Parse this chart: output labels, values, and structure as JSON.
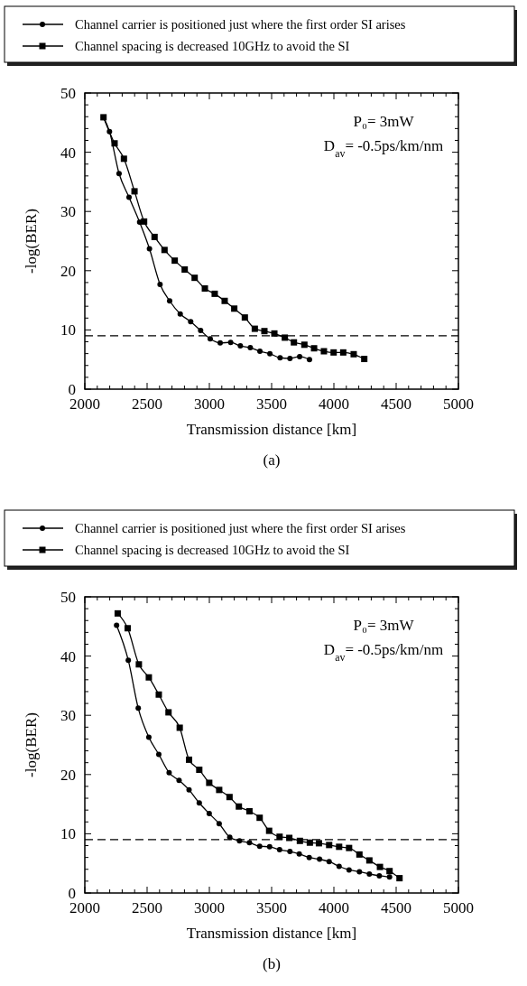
{
  "chart_data": [
    {
      "type": "line",
      "xlabel": "Transmission distance [km]",
      "ylabel": "-log(BER)",
      "legend": "top",
      "annotations": [
        "P₀= 3mW",
        "D$_{av}$= -0.5ps/km/nm",
        "(a)"
      ],
      "xlim": [
        2000,
        5000
      ],
      "ylim": [
        0,
        50
      ],
      "xticks": [
        2000,
        {
          "value": 2100,
          "label": null
        },
        {
          "value": 2200,
          "label": null
        },
        {
          "value": 2300,
          "label": null
        },
        {
          "value": 2400,
          "label": null
        },
        2500,
        {
          "value": 2600,
          "label": null
        },
        {
          "value": 2700,
          "label": null
        },
        {
          "value": 2800,
          "label": null
        },
        {
          "value": 2900,
          "label": null
        },
        3000,
        {
          "value": 3100,
          "label": null
        },
        {
          "value": 3200,
          "label": null
        },
        {
          "value": 3300,
          "label": null
        },
        {
          "value": 3400,
          "label": null
        },
        3500,
        {
          "value": 3600,
          "label": null
        },
        {
          "value": 3700,
          "label": null
        },
        {
          "value": 3800,
          "label": null
        },
        {
          "value": 3900,
          "label": null
        },
        4000,
        {
          "value": 4100,
          "label": null
        },
        {
          "value": 4200,
          "label": null
        },
        {
          "value": 4300,
          "label": null
        },
        {
          "value": 4400,
          "label": null
        },
        4500,
        {
          "value": 4600,
          "label": null
        },
        {
          "value": 4700,
          "label": null
        },
        {
          "value": 4800,
          "label": null
        },
        {
          "value": 4900,
          "label": null
        },
        5000
      ],
      "yticks": [
        0,
        {
          "value": 2,
          "label": null
        },
        {
          "value": 4,
          "label": null
        },
        {
          "value": 6,
          "label": null
        },
        {
          "value": 8,
          "label": null
        },
        10,
        {
          "value": 12,
          "label": null
        },
        {
          "value": 14,
          "label": null
        },
        {
          "value": 16,
          "label": null
        },
        {
          "value": 18,
          "label": null
        },
        20,
        {
          "value": 22,
          "label": null
        },
        {
          "value": 24,
          "label": null
        },
        {
          "value": 26,
          "label": null
        },
        {
          "value": 28,
          "label": null
        },
        30,
        {
          "value": 32,
          "label": null
        },
        {
          "value": 34,
          "label": null
        },
        {
          "value": 36,
          "label": null
        },
        {
          "value": 38,
          "label": null
        },
        40,
        {
          "value": 42,
          "label": null
        },
        {
          "value": 44,
          "label": null
        },
        {
          "value": 46,
          "label": null
        },
        {
          "value": 48,
          "label": null
        },
        50
      ],
      "ref_lines": [
        {
          "axis": "y",
          "value": 9,
          "line_style": "dashed",
          "color": "#000000"
        }
      ],
      "series": [
        {
          "name": "Channel carrier is positioned just where the first order SI arises",
          "color": "#000000",
          "marker": "circle",
          "x": [
            2150,
            2198,
            2275,
            2355,
            2440,
            2519,
            2604,
            2681,
            2766,
            2850,
            2930,
            3007,
            3087,
            3171,
            3249,
            3329,
            3406,
            3486,
            3568,
            3647,
            3725,
            3804
          ],
          "values": [
            45.9,
            43.5,
            36.4,
            32.4,
            28.2,
            23.7,
            17.7,
            14.9,
            12.7,
            11.4,
            9.9,
            8.5,
            7.8,
            7.9,
            7.3,
            7.0,
            6.4,
            6.0,
            5.3,
            5.2,
            5.5,
            5.0
          ]
        },
        {
          "name": "Channel spacing is decreased 10GHz to avoid the SI",
          "color": "#000000",
          "marker": "square",
          "x": [
            2150,
            2239,
            2314,
            2399,
            2476,
            2560,
            2640,
            2722,
            2802,
            2882,
            2964,
            3043,
            3123,
            3200,
            3285,
            3365,
            3442,
            3522,
            3606,
            3679,
            3763,
            3841,
            3920,
            3998,
            4075,
            4159,
            4244
          ],
          "values": [
            45.9,
            41.5,
            38.9,
            33.4,
            28.3,
            25.7,
            23.5,
            21.7,
            20.2,
            18.8,
            17.0,
            16.1,
            14.9,
            13.6,
            12.1,
            10.2,
            9.8,
            9.4,
            8.7,
            7.9,
            7.5,
            6.9,
            6.4,
            6.2,
            6.2,
            5.9,
            5.1
          ]
        }
      ]
    },
    {
      "type": "line",
      "xlabel": "Transmission distance [km]",
      "ylabel": "-log(BER)",
      "legend": "top",
      "annotations": [
        "P₀= 3mW",
        "D$_{av}$= -0.5ps/km/nm",
        "(b)"
      ],
      "xlim": [
        2000,
        5000
      ],
      "ylim": [
        0,
        50
      ],
      "xticks": [
        2000,
        {
          "value": 2100,
          "label": null
        },
        {
          "value": 2200,
          "label": null
        },
        {
          "value": 2300,
          "label": null
        },
        {
          "value": 2400,
          "label": null
        },
        2500,
        {
          "value": 2600,
          "label": null
        },
        {
          "value": 2700,
          "label": null
        },
        {
          "value": 2800,
          "label": null
        },
        {
          "value": 2900,
          "label": null
        },
        3000,
        {
          "value": 3100,
          "label": null
        },
        {
          "value": 3200,
          "label": null
        },
        {
          "value": 3300,
          "label": null
        },
        {
          "value": 3400,
          "label": null
        },
        3500,
        {
          "value": 3600,
          "label": null
        },
        {
          "value": 3700,
          "label": null
        },
        {
          "value": 3800,
          "label": null
        },
        {
          "value": 3900,
          "label": null
        },
        4000,
        {
          "value": 4100,
          "label": null
        },
        {
          "value": 4200,
          "label": null
        },
        {
          "value": 4300,
          "label": null
        },
        {
          "value": 4400,
          "label": null
        },
        4500,
        {
          "value": 4600,
          "label": null
        },
        {
          "value": 4700,
          "label": null
        },
        {
          "value": 4800,
          "label": null
        },
        {
          "value": 4900,
          "label": null
        },
        5000
      ],
      "yticks": [
        0,
        {
          "value": 2,
          "label": null
        },
        {
          "value": 4,
          "label": null
        },
        {
          "value": 6,
          "label": null
        },
        {
          "value": 8,
          "label": null
        },
        10,
        {
          "value": 12,
          "label": null
        },
        {
          "value": 14,
          "label": null
        },
        {
          "value": 16,
          "label": null
        },
        {
          "value": 18,
          "label": null
        },
        20,
        {
          "value": 22,
          "label": null
        },
        {
          "value": 24,
          "label": null
        },
        {
          "value": 26,
          "label": null
        },
        {
          "value": 28,
          "label": null
        },
        30,
        {
          "value": 32,
          "label": null
        },
        {
          "value": 34,
          "label": null
        },
        {
          "value": 36,
          "label": null
        },
        {
          "value": 38,
          "label": null
        },
        40,
        {
          "value": 42,
          "label": null
        },
        {
          "value": 44,
          "label": null
        },
        {
          "value": 46,
          "label": null
        },
        {
          "value": 48,
          "label": null
        },
        50
      ],
      "ref_lines": [
        {
          "axis": "y",
          "value": 9,
          "line_style": "dashed",
          "color": "#000000"
        }
      ],
      "series": [
        {
          "name": "Channel carrier is positioned just where the first order SI arises",
          "color": "#000000",
          "marker": "circle",
          "x": [
            2255,
            2349,
            2429,
            2514,
            2594,
            2677,
            2757,
            2837,
            2919,
            2999,
            3079,
            3164,
            3242,
            3322,
            3404,
            3484,
            3564,
            3647,
            3722,
            3802,
            3885,
            3962,
            4042,
            4122,
            4205,
            4285,
            4365,
            4447
          ],
          "values": [
            45.2,
            39.3,
            31.2,
            26.3,
            23.4,
            20.3,
            19.0,
            17.4,
            15.2,
            13.4,
            11.7,
            9.4,
            8.8,
            8.5,
            7.9,
            7.8,
            7.3,
            7.0,
            6.6,
            6.0,
            5.7,
            5.3,
            4.5,
            3.9,
            3.6,
            3.2,
            2.9,
            2.7
          ]
        },
        {
          "name": "Channel spacing is decreased 10GHz to avoid the SI",
          "color": "#000000",
          "marker": "square",
          "x": [
            2264,
            2344,
            2434,
            2514,
            2594,
            2672,
            2762,
            2837,
            2919,
            2999,
            3079,
            3162,
            3237,
            3322,
            3404,
            3480,
            3564,
            3642,
            3727,
            3807,
            3880,
            3962,
            4042,
            4122,
            4205,
            4285,
            4370,
            4447,
            4527
          ],
          "values": [
            47.2,
            44.7,
            38.6,
            36.4,
            33.5,
            30.5,
            27.9,
            22.5,
            20.8,
            18.6,
            17.4,
            16.2,
            14.6,
            13.8,
            12.7,
            10.5,
            9.5,
            9.3,
            8.8,
            8.5,
            8.4,
            8.1,
            7.8,
            7.6,
            6.5,
            5.5,
            4.4,
            3.7,
            2.5
          ]
        }
      ]
    }
  ]
}
